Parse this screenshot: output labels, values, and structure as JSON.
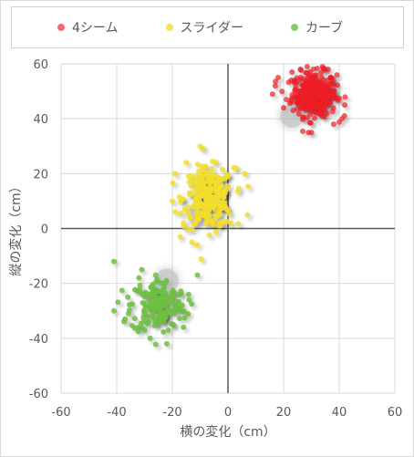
{
  "chart_data": {
    "type": "scatter",
    "xlabel": "横の変化（cm）",
    "ylabel": "縦の変化（cm）",
    "xlim": [
      -60,
      60
    ],
    "ylim": [
      -60,
      60
    ],
    "xticks": [
      "-60",
      "-40",
      "-20",
      "0",
      "20",
      "40",
      "60"
    ],
    "yticks": [
      "60",
      "40",
      "20",
      "0",
      "-20",
      "-40",
      "-60"
    ],
    "grid": true,
    "legend_position": "top",
    "series": [
      {
        "name": "4シーム",
        "color": "#ee1c25",
        "center": [
          31,
          49
        ],
        "spread": [
          4,
          4
        ],
        "count": 320,
        "points": [
          [
            16,
            49
          ],
          [
            17,
            52
          ],
          [
            18,
            55
          ],
          [
            21,
            47
          ],
          [
            23,
            57
          ],
          [
            29,
            35
          ],
          [
            30,
            35
          ],
          [
            41,
            40
          ],
          [
            42,
            45
          ],
          [
            38,
            38
          ],
          [
            36,
            58
          ],
          [
            34,
            59
          ],
          [
            26,
            58
          ],
          [
            24,
            53
          ],
          [
            20,
            44
          ]
        ]
      },
      {
        "name": "スライダー",
        "color": "#f2de2b",
        "center": [
          -7,
          11
        ],
        "spread": [
          4.5,
          5.5
        ],
        "count": 260,
        "points": [
          [
            -20,
            10
          ],
          [
            -19,
            20
          ],
          [
            -15,
            24
          ],
          [
            -10,
            30
          ],
          [
            3,
            22
          ],
          [
            6,
            20
          ],
          [
            7,
            5
          ],
          [
            -13,
            -5
          ],
          [
            -11,
            -6
          ],
          [
            -16,
            2
          ],
          [
            1,
            2
          ]
        ]
      },
      {
        "name": "カーブ",
        "color": "#6cbf3f",
        "center": [
          -25,
          -28
        ],
        "spread": [
          5,
          5
        ],
        "count": 170,
        "points": [
          [
            -41,
            -12
          ],
          [
            -41,
            -30
          ],
          [
            -36,
            -25
          ],
          [
            -37,
            -33
          ],
          [
            -32,
            -18
          ],
          [
            -31,
            -15
          ],
          [
            -26,
            -17
          ],
          [
            -11,
            -17
          ],
          [
            -16,
            -36
          ],
          [
            -22,
            -42
          ],
          [
            -28,
            -40
          ],
          [
            -20,
            -27
          ],
          [
            -30,
            -37
          ],
          [
            -14,
            -26
          ]
        ]
      }
    ],
    "mean_markers": [
      {
        "series": "4シーム",
        "x": 23,
        "y": 41
      },
      {
        "series": "スライダー",
        "x": -10,
        "y": 5
      },
      {
        "series": "カーブ",
        "x": -22,
        "y": -19
      }
    ]
  }
}
